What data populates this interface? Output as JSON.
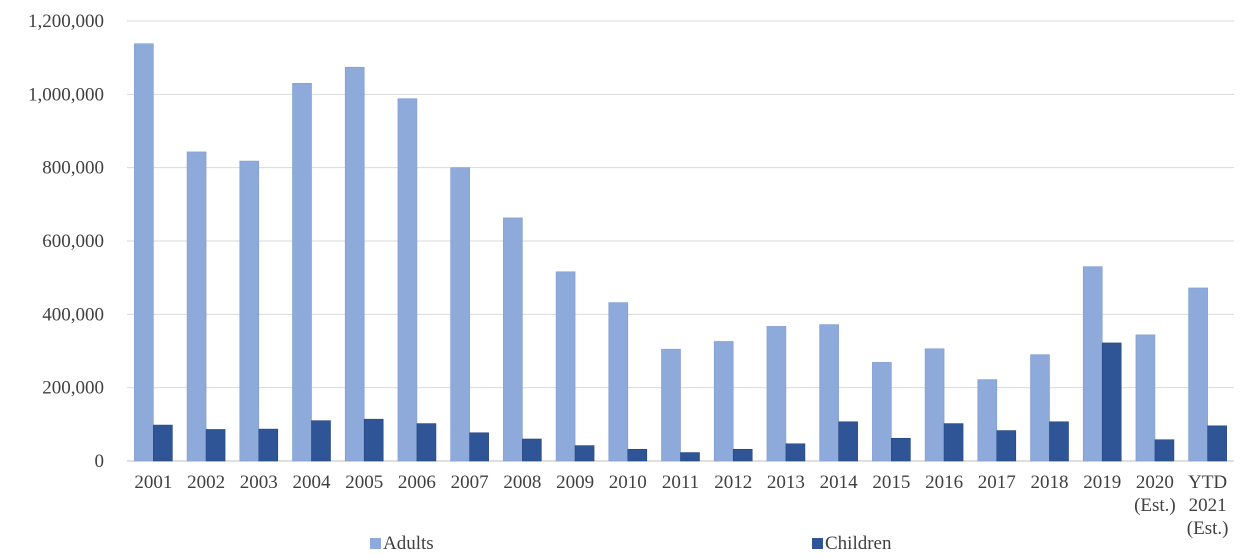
{
  "chart_data": {
    "type": "bar",
    "categories": [
      [
        "2001"
      ],
      [
        "2002"
      ],
      [
        "2003"
      ],
      [
        "2004"
      ],
      [
        "2005"
      ],
      [
        "2006"
      ],
      [
        "2007"
      ],
      [
        "2008"
      ],
      [
        "2009"
      ],
      [
        "2010"
      ],
      [
        "2011"
      ],
      [
        "2012"
      ],
      [
        "2013"
      ],
      [
        "2014"
      ],
      [
        "2015"
      ],
      [
        "2016"
      ],
      [
        "2017"
      ],
      [
        "2018"
      ],
      [
        "2019"
      ],
      [
        "2020",
        "(Est.)"
      ],
      [
        "YTD",
        "2021",
        "(Est.)"
      ]
    ],
    "series": [
      {
        "name": "Adults",
        "color": "#8eaadb",
        "values": [
          1138000,
          843000,
          818000,
          1030000,
          1074000,
          988000,
          800000,
          663000,
          516000,
          432000,
          305000,
          326000,
          367000,
          372000,
          269000,
          306000,
          222000,
          290000,
          530000,
          344000,
          472000
        ]
      },
      {
        "name": "Children",
        "color": "#2f5597",
        "values": [
          98000,
          86000,
          87000,
          110000,
          114000,
          102000,
          77000,
          60000,
          42000,
          32000,
          23000,
          32000,
          47000,
          107000,
          62000,
          102000,
          83000,
          107000,
          322000,
          58000,
          96000
        ]
      }
    ],
    "yticks": [
      "0",
      "200,000",
      "400,000",
      "600,000",
      "800,000",
      "1,000,000",
      "1,200,000"
    ],
    "ylim": [
      0,
      1200000
    ],
    "grid": true,
    "legend_position": "bottom"
  }
}
